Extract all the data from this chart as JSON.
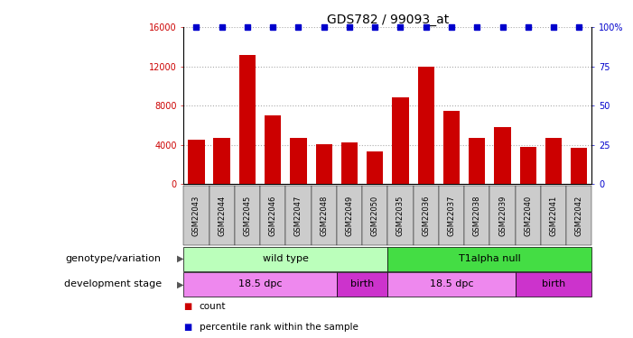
{
  "title": "GDS782 / 99093_at",
  "samples": [
    "GSM22043",
    "GSM22044",
    "GSM22045",
    "GSM22046",
    "GSM22047",
    "GSM22048",
    "GSM22049",
    "GSM22050",
    "GSM22035",
    "GSM22036",
    "GSM22037",
    "GSM22038",
    "GSM22039",
    "GSM22040",
    "GSM22041",
    "GSM22042"
  ],
  "counts": [
    4500,
    4700,
    13200,
    7000,
    4700,
    4100,
    4300,
    3300,
    8800,
    12000,
    7500,
    4700,
    5800,
    3800,
    4700,
    3700
  ],
  "percentile_ranks": [
    100,
    100,
    100,
    100,
    100,
    100,
    100,
    100,
    100,
    100,
    100,
    100,
    100,
    100,
    100,
    100
  ],
  "bar_color": "#cc0000",
  "dot_color": "#0000cc",
  "ylim_left": [
    0,
    16000
  ],
  "ylim_right": [
    0,
    100
  ],
  "yticks_left": [
    0,
    4000,
    8000,
    12000,
    16000
  ],
  "ytick_labels_left": [
    "0",
    "4000",
    "8000",
    "12000",
    "16000"
  ],
  "yticks_right": [
    0,
    25,
    50,
    75,
    100
  ],
  "ytick_labels_right": [
    "0",
    "25",
    "50",
    "75",
    "100%"
  ],
  "genotype_groups": [
    {
      "label": "wild type",
      "start": 0,
      "end": 8,
      "color": "#bbffbb"
    },
    {
      "label": "T1alpha null",
      "start": 8,
      "end": 16,
      "color": "#44dd44"
    }
  ],
  "stage_groups": [
    {
      "label": "18.5 dpc",
      "start": 0,
      "end": 6,
      "color": "#ee88ee"
    },
    {
      "label": "birth",
      "start": 6,
      "end": 8,
      "color": "#cc33cc"
    },
    {
      "label": "18.5 dpc",
      "start": 8,
      "end": 13,
      "color": "#ee88ee"
    },
    {
      "label": "birth",
      "start": 13,
      "end": 16,
      "color": "#cc33cc"
    }
  ],
  "genotype_label": "genotype/variation",
  "stage_label": "development stage",
  "legend_count_label": "count",
  "legend_pct_label": "percentile rank within the sample",
  "bg_color": "#ffffff",
  "tick_label_color_left": "#cc0000",
  "tick_label_color_right": "#0000cc",
  "grid_color": "#aaaaaa",
  "xtick_bg_color": "#cccccc",
  "title_fontsize": 10,
  "tick_fontsize": 7,
  "sample_tick_fontsize": 6,
  "row_label_fontsize": 8,
  "row_content_fontsize": 8,
  "legend_fontsize": 7.5
}
